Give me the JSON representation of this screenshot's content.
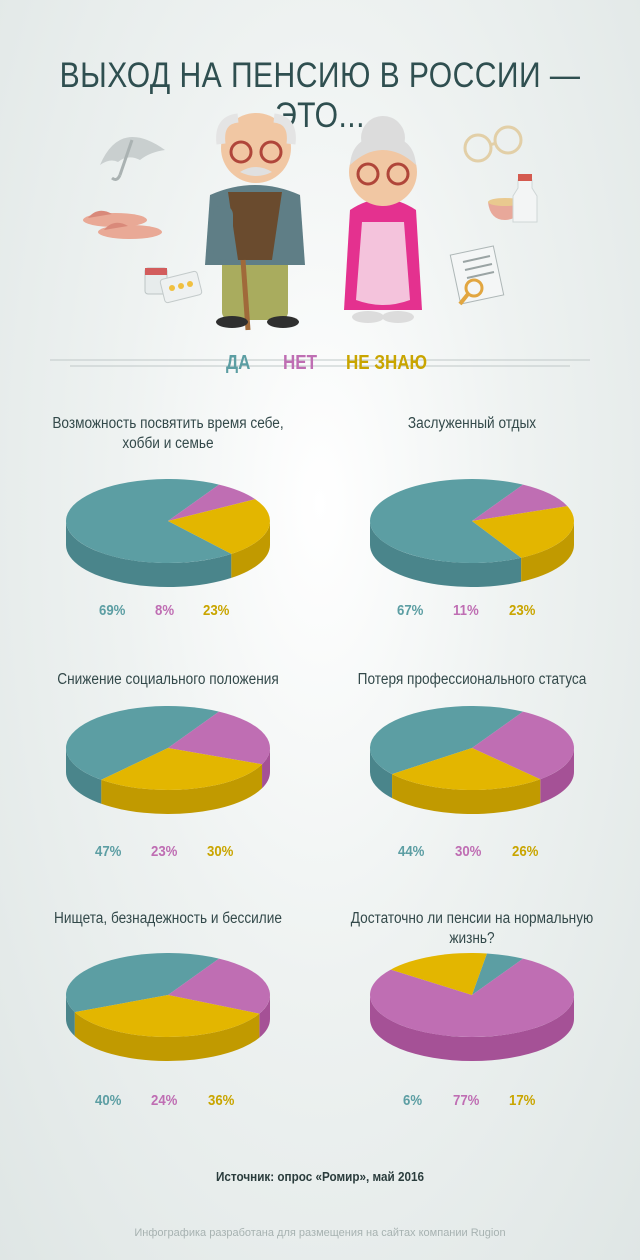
{
  "title": "ВЫХОД НА ПЕНСИЮ В РОССИИ — ЭТО...",
  "legend": {
    "yes": "ДА",
    "no": "НЕТ",
    "dont_know": "НЕ ЗНАЮ"
  },
  "colors": {
    "yes": "#5c9ea3",
    "yes_side": "#4a858b",
    "no": "#bf6eb3",
    "no_side": "#a55196",
    "dont_know": "#e3b600",
    "dont_know_side": "#c19a00"
  },
  "chart_data": [
    {
      "type": "pie",
      "title": "Возможность посвятить время себе, хобби и семье",
      "labels": [
        "Да",
        "Нет",
        "Не знаю"
      ],
      "values": [
        69,
        8,
        23
      ],
      "value_labels": [
        "69%",
        "8%",
        "23%"
      ]
    },
    {
      "type": "pie",
      "title": "Заслуженный отдых",
      "labels": [
        "Да",
        "Нет",
        "Не знаю"
      ],
      "values": [
        67,
        11,
        23
      ],
      "value_labels": [
        "67%",
        "11%",
        "23%"
      ]
    },
    {
      "type": "pie",
      "title": "Снижение социального положения",
      "labels": [
        "Да",
        "Нет",
        "Не знаю"
      ],
      "values": [
        47,
        23,
        30
      ],
      "value_labels": [
        "47%",
        "23%",
        "30%"
      ]
    },
    {
      "type": "pie",
      "title": "Потеря профессионального статуса",
      "labels": [
        "Да",
        "Нет",
        "Не знаю"
      ],
      "values": [
        44,
        30,
        26
      ],
      "value_labels": [
        "44%",
        "30%",
        "26%"
      ]
    },
    {
      "type": "pie",
      "title": "Нищета, безнадежность и бессилие",
      "labels": [
        "Да",
        "Нет",
        "Не знаю"
      ],
      "values": [
        40,
        24,
        36
      ],
      "value_labels": [
        "40%",
        "24%",
        "36%"
      ]
    },
    {
      "type": "pie",
      "title": "Достаточно ли пенсии на нормальную жизнь?",
      "labels": [
        "Да",
        "Нет",
        "Не знаю"
      ],
      "values": [
        6,
        77,
        17
      ],
      "value_labels": [
        "6%",
        "77%",
        "17%"
      ]
    }
  ],
  "source": "Источник: опрос «Ромир», май 2016",
  "credit": "Инфографика разработана для размещения на сайтах компании Rugion"
}
